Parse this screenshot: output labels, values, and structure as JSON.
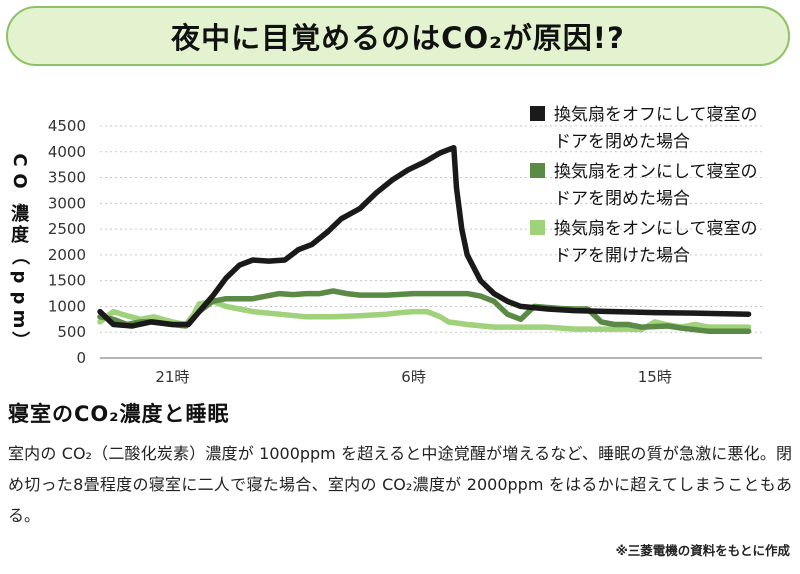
{
  "title": "夜中に目覚めるのはCO₂が原因!?",
  "colors": {
    "banner_bg": "#e3f3cf",
    "banner_border": "#8fc266",
    "series_black": "#1a1a1a",
    "series_dark_green": "#5a8a45",
    "series_light_green": "#9fd27a",
    "grid": "#c8c8c8"
  },
  "chart_data": {
    "type": "line",
    "ylabel": "CO₂濃度（ppm）",
    "ylim": [
      0,
      4500
    ],
    "yticks": [
      0,
      500,
      1000,
      1500,
      2000,
      2500,
      3000,
      3500,
      4000,
      4500
    ],
    "xlim": [
      18.3,
      43
    ],
    "xticks": [
      {
        "x": 21,
        "label": "21時"
      },
      {
        "x": 30,
        "label": "6時"
      },
      {
        "x": 39,
        "label": "15時"
      }
    ],
    "grid": true,
    "legend_position": "top-right",
    "series": [
      {
        "name": "換気扇をオフにして寝室のドアを閉めた場合",
        "color": "#1a1a1a",
        "points": [
          [
            18.3,
            900
          ],
          [
            18.8,
            650
          ],
          [
            19.5,
            620
          ],
          [
            20.2,
            700
          ],
          [
            21,
            650
          ],
          [
            21.6,
            650
          ],
          [
            22.0,
            900
          ],
          [
            22.5,
            1200
          ],
          [
            23.0,
            1550
          ],
          [
            23.5,
            1800
          ],
          [
            24.0,
            1900
          ],
          [
            24.6,
            1880
          ],
          [
            25.2,
            1900
          ],
          [
            25.7,
            2100
          ],
          [
            26.2,
            2200
          ],
          [
            26.8,
            2450
          ],
          [
            27.3,
            2700
          ],
          [
            28.0,
            2900
          ],
          [
            28.6,
            3200
          ],
          [
            29.2,
            3450
          ],
          [
            29.8,
            3650
          ],
          [
            30.4,
            3800
          ],
          [
            31.0,
            3980
          ],
          [
            31.4,
            4060
          ],
          [
            31.5,
            4080
          ],
          [
            31.6,
            3300
          ],
          [
            31.8,
            2500
          ],
          [
            32.0,
            2000
          ],
          [
            32.5,
            1500
          ],
          [
            33.0,
            1250
          ],
          [
            33.5,
            1100
          ],
          [
            34.0,
            1000
          ],
          [
            35.0,
            950
          ],
          [
            36.0,
            920
          ],
          [
            37.5,
            900
          ],
          [
            39.0,
            880
          ],
          [
            40.5,
            870
          ],
          [
            42.5,
            850
          ]
        ]
      },
      {
        "name": "換気扇をオンにして寝室のドアを閉めた場合",
        "color": "#5a8a45",
        "points": [
          [
            18.3,
            800
          ],
          [
            18.8,
            750
          ],
          [
            19.3,
            650
          ],
          [
            19.8,
            700
          ],
          [
            20.3,
            700
          ],
          [
            21,
            650
          ],
          [
            21.5,
            620
          ],
          [
            22.0,
            900
          ],
          [
            22.5,
            1100
          ],
          [
            23.0,
            1150
          ],
          [
            23.5,
            1150
          ],
          [
            24.0,
            1150
          ],
          [
            24.5,
            1200
          ],
          [
            25.0,
            1250
          ],
          [
            25.5,
            1230
          ],
          [
            26.0,
            1250
          ],
          [
            26.5,
            1250
          ],
          [
            27.0,
            1300
          ],
          [
            27.5,
            1250
          ],
          [
            28.0,
            1220
          ],
          [
            29.0,
            1220
          ],
          [
            30.0,
            1250
          ],
          [
            31.0,
            1250
          ],
          [
            32.0,
            1250
          ],
          [
            32.5,
            1200
          ],
          [
            33.0,
            1100
          ],
          [
            33.5,
            850
          ],
          [
            34.0,
            750
          ],
          [
            34.5,
            1000
          ],
          [
            35.0,
            980
          ],
          [
            35.5,
            960
          ],
          [
            36.0,
            950
          ],
          [
            36.5,
            950
          ],
          [
            37.0,
            700
          ],
          [
            37.5,
            650
          ],
          [
            38.0,
            650
          ],
          [
            38.5,
            600
          ],
          [
            39.5,
            620
          ],
          [
            40.0,
            580
          ],
          [
            41.0,
            520
          ],
          [
            42.5,
            520
          ]
        ]
      },
      {
        "name": "換気扇をオンにして寝室のドアを開けた場合",
        "color": "#9fd27a",
        "points": [
          [
            18.3,
            700
          ],
          [
            18.8,
            900
          ],
          [
            19.3,
            820
          ],
          [
            19.8,
            750
          ],
          [
            20.3,
            800
          ],
          [
            21,
            700
          ],
          [
            21.5,
            650
          ],
          [
            21.8,
            850
          ],
          [
            22.0,
            1050
          ],
          [
            22.5,
            1100
          ],
          [
            23.0,
            1000
          ],
          [
            23.5,
            950
          ],
          [
            24.0,
            900
          ],
          [
            25.0,
            850
          ],
          [
            26.0,
            800
          ],
          [
            27.0,
            800
          ],
          [
            28.0,
            820
          ],
          [
            29.0,
            850
          ],
          [
            29.5,
            880
          ],
          [
            30.0,
            900
          ],
          [
            30.5,
            900
          ],
          [
            31.0,
            800
          ],
          [
            31.3,
            700
          ],
          [
            32.0,
            650
          ],
          [
            33.0,
            600
          ],
          [
            34.0,
            600
          ],
          [
            35.0,
            600
          ],
          [
            36.0,
            560
          ],
          [
            37.0,
            560
          ],
          [
            38.0,
            560
          ],
          [
            38.5,
            550
          ],
          [
            39.0,
            700
          ],
          [
            39.5,
            640
          ],
          [
            40.0,
            600
          ],
          [
            40.5,
            650
          ],
          [
            41.0,
            600
          ],
          [
            42.0,
            600
          ],
          [
            42.5,
            600
          ]
        ]
      }
    ]
  },
  "section": {
    "heading": "寝室のCO₂濃度と睡眠",
    "body": "室内の CO₂（二酸化炭素）濃度が 1000ppm を超えると中途覚醒が増えるなど、睡眠の質が急激に悪化。閉め切った8畳程度の寝室に二人で寝た場合、室内の CO₂濃度が 2000ppm をはるかに超えてしまうこともある。",
    "source": "※三菱電機の資料をもとに作成"
  }
}
